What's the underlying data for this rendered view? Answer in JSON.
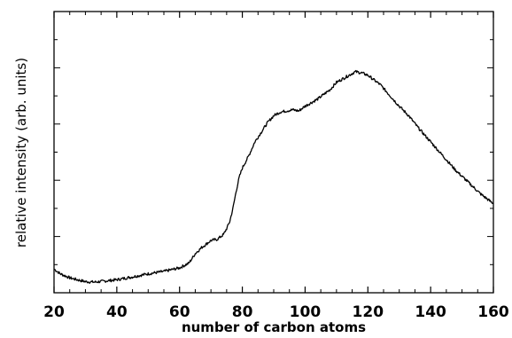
{
  "chart_data": {
    "type": "line",
    "title": "",
    "xlabel": "number of carbon atoms",
    "ylabel": "relative intensity (arb. units)",
    "xlim": [
      20,
      160
    ],
    "ylim": [
      0,
      1
    ],
    "x_ticks": [
      20,
      40,
      60,
      80,
      100,
      120,
      140,
      160
    ],
    "y_tick_labels": false,
    "grid": false,
    "legend": "none",
    "line_color": "#000000",
    "series": [
      {
        "x": [
          20,
          22,
          25,
          28,
          30,
          33,
          36,
          40,
          45,
          50,
          55,
          60,
          63,
          65,
          67,
          69,
          70,
          72,
          74,
          75,
          76,
          77,
          78,
          79,
          80,
          82,
          84,
          86,
          88,
          90,
          92,
          94,
          96,
          98,
          100,
          102,
          104,
          106,
          108,
          110,
          112,
          114,
          116,
          118,
          120,
          122,
          124,
          126,
          128,
          130,
          133,
          136,
          140,
          144,
          148,
          152,
          156,
          160
        ],
        "y": [
          0.055,
          0.035,
          0.018,
          0.008,
          0.002,
          0.0,
          0.004,
          0.01,
          0.022,
          0.035,
          0.045,
          0.06,
          0.08,
          0.12,
          0.145,
          0.165,
          0.175,
          0.18,
          0.2,
          0.225,
          0.255,
          0.31,
          0.38,
          0.44,
          0.48,
          0.53,
          0.59,
          0.63,
          0.67,
          0.7,
          0.715,
          0.72,
          0.725,
          0.72,
          0.74,
          0.755,
          0.77,
          0.79,
          0.81,
          0.84,
          0.855,
          0.87,
          0.885,
          0.88,
          0.87,
          0.85,
          0.83,
          0.8,
          0.77,
          0.74,
          0.7,
          0.65,
          0.59,
          0.53,
          0.47,
          0.42,
          0.37,
          0.33
        ]
      }
    ]
  }
}
